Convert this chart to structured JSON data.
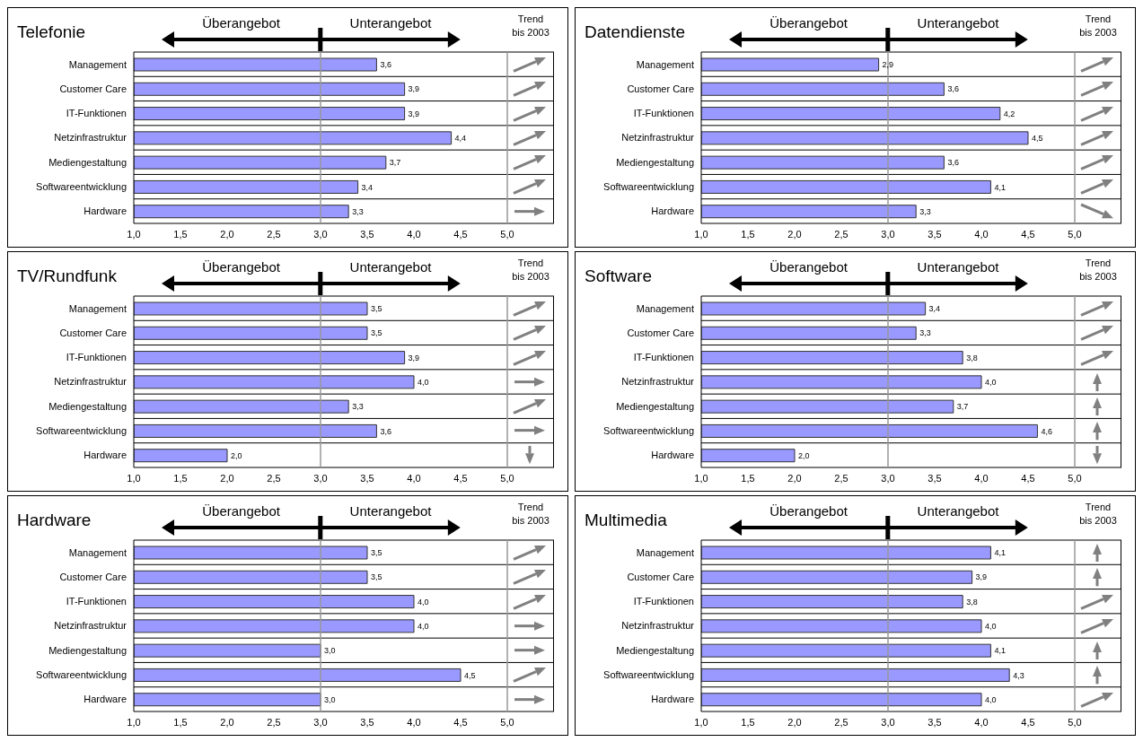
{
  "chart_data": [
    {
      "type": "bar",
      "orientation": "horizontal",
      "title": "Telefonie",
      "annotations": [
        "Überangebot",
        "Unterangebot",
        "Trend bis 2003"
      ],
      "categories": [
        "Management",
        "Customer Care",
        "IT-Funktionen",
        "Netzinfrastruktur",
        "Mediengestaltung",
        "Softwareentwicklung",
        "Hardware"
      ],
      "values": [
        3.6,
        3.9,
        3.9,
        4.4,
        3.7,
        3.4,
        3.3
      ],
      "value_labels": [
        "3,6",
        "3,9",
        "3,9",
        "4,4",
        "3,7",
        "3,4",
        "3,3"
      ],
      "color": "#9999ff",
      "xlim": [
        1,
        5.5
      ],
      "xticks": [
        {
          "value": 1,
          "label": "1,0"
        },
        {
          "value": 1.5,
          "label": "1,5"
        },
        {
          "value": 2,
          "label": "2,0"
        },
        {
          "value": 2.5,
          "label": "2,5"
        },
        {
          "value": 3,
          "label": "3,0"
        },
        {
          "value": 3.5,
          "label": "3,5"
        },
        {
          "value": 4,
          "label": "4,0"
        },
        {
          "value": 4.5,
          "label": "4,5"
        },
        {
          "value": 5,
          "label": "5,0"
        }
      ],
      "ref_lines": [
        {
          "axis": "x",
          "value": 3,
          "color": "#999999"
        },
        {
          "axis": "x",
          "value": 5,
          "color": "#999999"
        }
      ],
      "grid": "y"
    },
    {
      "type": "bar",
      "orientation": "horizontal",
      "title": "Datendienste",
      "annotations": [
        "Überangebot",
        "Unterangebot",
        "Trend bis 2003"
      ],
      "categories": [
        "Management",
        "Customer Care",
        "IT-Funktionen",
        "Netzinfrastruktur",
        "Mediengestaltung",
        "Softwareentwicklung",
        "Hardware"
      ],
      "values": [
        2.9,
        3.6,
        4.2,
        4.5,
        3.6,
        4.1,
        3.3
      ],
      "value_labels": [
        "2,9",
        "3,6",
        "4,2",
        "4,5",
        "3,6",
        "4,1",
        "3,3"
      ],
      "color": "#9999ff",
      "xlim": [
        1,
        5.5
      ],
      "xticks": [
        {
          "value": 1,
          "label": "1,0"
        },
        {
          "value": 1.5,
          "label": "1,5"
        },
        {
          "value": 2,
          "label": "2,0"
        },
        {
          "value": 2.5,
          "label": "2,5"
        },
        {
          "value": 3,
          "label": "3,0"
        },
        {
          "value": 3.5,
          "label": "3,5"
        },
        {
          "value": 4,
          "label": "4,0"
        },
        {
          "value": 4.5,
          "label": "4,5"
        },
        {
          "value": 5,
          "label": "5,0"
        }
      ],
      "ref_lines": [
        {
          "axis": "x",
          "value": 3,
          "color": "#999999"
        },
        {
          "axis": "x",
          "value": 5,
          "color": "#999999"
        }
      ],
      "grid": "y"
    },
    {
      "type": "bar",
      "orientation": "horizontal",
      "title": "TV/Rundfunk",
      "annotations": [
        "Überangebot",
        "Unterangebot",
        "Trend bis 2003"
      ],
      "categories": [
        "Management",
        "Customer Care",
        "IT-Funktionen",
        "Netzinfrastruktur",
        "Mediengestaltung",
        "Softwareentwicklung",
        "Hardware"
      ],
      "values": [
        3.5,
        3.5,
        3.9,
        4.0,
        3.3,
        3.6,
        2.0
      ],
      "value_labels": [
        "3,5",
        "3,5",
        "3,9",
        "4,0",
        "3,3",
        "3,6",
        "2,0"
      ],
      "color": "#9999ff",
      "xlim": [
        1,
        5.5
      ],
      "xticks": [
        {
          "value": 1,
          "label": "1,0"
        },
        {
          "value": 1.5,
          "label": "1,5"
        },
        {
          "value": 2,
          "label": "2,0"
        },
        {
          "value": 2.5,
          "label": "2,5"
        },
        {
          "value": 3,
          "label": "3,0"
        },
        {
          "value": 3.5,
          "label": "3,5"
        },
        {
          "value": 4,
          "label": "4,0"
        },
        {
          "value": 4.5,
          "label": "4,5"
        },
        {
          "value": 5,
          "label": "5,0"
        }
      ],
      "ref_lines": [
        {
          "axis": "x",
          "value": 3,
          "color": "#999999"
        },
        {
          "axis": "x",
          "value": 5,
          "color": "#999999"
        }
      ],
      "grid": "y"
    },
    {
      "type": "bar",
      "orientation": "horizontal",
      "title": "Software",
      "annotations": [
        "Überangebot",
        "Unterangebot",
        "Trend bis 2003"
      ],
      "categories": [
        "Management",
        "Customer Care",
        "IT-Funktionen",
        "Netzinfrastruktur",
        "Mediengestaltung",
        "Softwareentwicklung",
        "Hardware"
      ],
      "values": [
        3.4,
        3.3,
        3.8,
        4.0,
        3.7,
        4.6,
        2.0
      ],
      "value_labels": [
        "3,4",
        "3,3",
        "3,8",
        "4,0",
        "3,7",
        "4,6",
        "2,0"
      ],
      "color": "#9999ff",
      "xlim": [
        1,
        5.5
      ],
      "xticks": [
        {
          "value": 1,
          "label": "1,0"
        },
        {
          "value": 1.5,
          "label": "1,5"
        },
        {
          "value": 2,
          "label": "2,0"
        },
        {
          "value": 2.5,
          "label": "2,5"
        },
        {
          "value": 3,
          "label": "3,0"
        },
        {
          "value": 3.5,
          "label": "3,5"
        },
        {
          "value": 4,
          "label": "4,0"
        },
        {
          "value": 4.5,
          "label": "4,5"
        },
        {
          "value": 5,
          "label": "5,0"
        }
      ],
      "ref_lines": [
        {
          "axis": "x",
          "value": 3,
          "color": "#999999"
        },
        {
          "axis": "x",
          "value": 5,
          "color": "#999999"
        }
      ],
      "grid": "y"
    },
    {
      "type": "bar",
      "orientation": "horizontal",
      "title": "Hardware",
      "annotations": [
        "Überangebot",
        "Unterangebot",
        "Trend bis 2003"
      ],
      "categories": [
        "Management",
        "Customer Care",
        "IT-Funktionen",
        "Netzinfrastruktur",
        "Mediengestaltung",
        "Softwareentwicklung",
        "Hardware"
      ],
      "values": [
        3.5,
        3.5,
        4.0,
        4.0,
        3.0,
        4.5,
        3.0
      ],
      "value_labels": [
        "3,5",
        "3,5",
        "4,0",
        "4,0",
        "3,0",
        "4,5",
        "3,0"
      ],
      "color": "#9999ff",
      "xlim": [
        1,
        5.5
      ],
      "xticks": [
        {
          "value": 1,
          "label": "1,0"
        },
        {
          "value": 1.5,
          "label": "1,5"
        },
        {
          "value": 2,
          "label": "2,0"
        },
        {
          "value": 2.5,
          "label": "2,5"
        },
        {
          "value": 3,
          "label": "3,0"
        },
        {
          "value": 3.5,
          "label": "3,5"
        },
        {
          "value": 4,
          "label": "4,0"
        },
        {
          "value": 4.5,
          "label": "4,5"
        },
        {
          "value": 5,
          "label": "5,0"
        }
      ],
      "ref_lines": [
        {
          "axis": "x",
          "value": 3,
          "color": "#999999"
        },
        {
          "axis": "x",
          "value": 5,
          "color": "#999999"
        }
      ],
      "grid": "y"
    },
    {
      "type": "bar",
      "orientation": "horizontal",
      "title": "Multimedia",
      "annotations": [
        "Überangebot",
        "Unterangebot",
        "Trend bis 2003"
      ],
      "categories": [
        "Management",
        "Customer Care",
        "IT-Funktionen",
        "Netzinfrastruktur",
        "Mediengestaltung",
        "Softwareentwicklung",
        "Hardware"
      ],
      "values": [
        4.1,
        3.9,
        3.8,
        4.0,
        4.1,
        4.3,
        4.0
      ],
      "value_labels": [
        "4,1",
        "3,9",
        "3,8",
        "4,0",
        "4,1",
        "4,3",
        "4,0"
      ],
      "color": "#9999ff",
      "xlim": [
        1,
        5.5
      ],
      "xticks": [
        {
          "value": 1,
          "label": "1,0"
        },
        {
          "value": 1.5,
          "label": "1,5"
        },
        {
          "value": 2,
          "label": "2,0"
        },
        {
          "value": 2.5,
          "label": "2,5"
        },
        {
          "value": 3,
          "label": "3,0"
        },
        {
          "value": 3.5,
          "label": "3,5"
        },
        {
          "value": 4,
          "label": "4,0"
        },
        {
          "value": 4.5,
          "label": "4,5"
        },
        {
          "value": 5,
          "label": "5,0"
        }
      ],
      "ref_lines": [
        {
          "axis": "x",
          "value": 3,
          "color": "#999999"
        },
        {
          "axis": "x",
          "value": 5,
          "color": "#999999"
        }
      ],
      "grid": "y"
    }
  ]
}
